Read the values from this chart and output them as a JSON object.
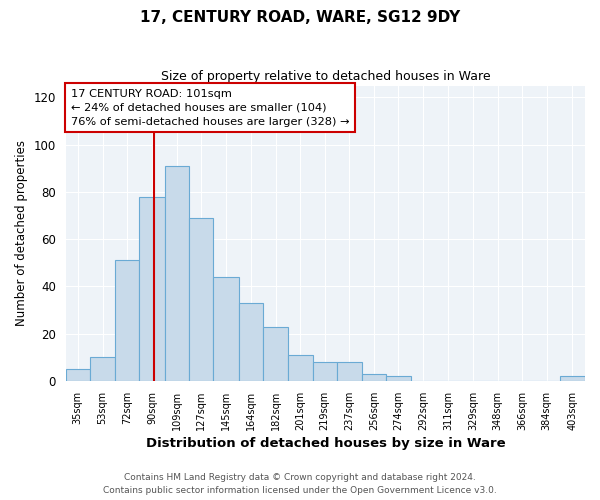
{
  "title": "17, CENTURY ROAD, WARE, SG12 9DY",
  "subtitle": "Size of property relative to detached houses in Ware",
  "xlabel": "Distribution of detached houses by size in Ware",
  "ylabel": "Number of detached properties",
  "footer_line1": "Contains HM Land Registry data © Crown copyright and database right 2024.",
  "footer_line2": "Contains public sector information licensed under the Open Government Licence v3.0.",
  "bin_labels": [
    "35sqm",
    "53sqm",
    "72sqm",
    "90sqm",
    "109sqm",
    "127sqm",
    "145sqm",
    "164sqm",
    "182sqm",
    "201sqm",
    "219sqm",
    "237sqm",
    "256sqm",
    "274sqm",
    "292sqm",
    "311sqm",
    "329sqm",
    "348sqm",
    "366sqm",
    "384sqm",
    "403sqm"
  ],
  "bar_heights": [
    5,
    10,
    51,
    78,
    91,
    69,
    44,
    33,
    23,
    11,
    8,
    8,
    3,
    2,
    0,
    0,
    0,
    0,
    0,
    0,
    2
  ],
  "bar_color": "#c8daea",
  "bar_edge_color": "#6aaad4",
  "ylim": [
    0,
    125
  ],
  "yticks": [
    0,
    20,
    40,
    60,
    80,
    100,
    120
  ],
  "annotation_title": "17 CENTURY ROAD: 101sqm",
  "annotation_line1": "← 24% of detached houses are smaller (104)",
  "annotation_line2": "76% of semi-detached houses are larger (328) →",
  "annotation_box_color": "#ffffff",
  "annotation_box_edge_color": "#cc0000",
  "red_line_color": "#cc0000",
  "background_color": "#ffffff",
  "plot_bg_color": "#eef3f8",
  "grid_color": "#ffffff",
  "bin_edges": [
    35,
    53,
    72,
    90,
    109,
    127,
    145,
    164,
    182,
    201,
    219,
    237,
    256,
    274,
    292,
    311,
    329,
    348,
    366,
    384,
    403
  ],
  "property_sqm": 101
}
